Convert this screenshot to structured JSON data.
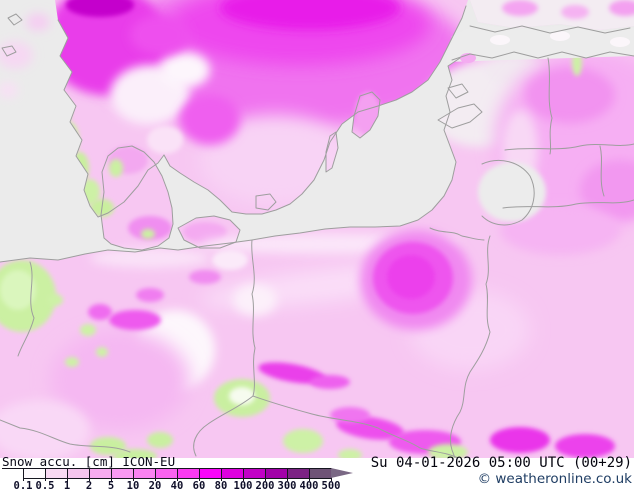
{
  "legend": {
    "title": "Snow accu. [cm] ICON-EU",
    "scale_labels": [
      "0.1",
      "0.5",
      "1",
      "2",
      "5",
      "10",
      "20",
      "40",
      "60",
      "80",
      "100",
      "200",
      "300",
      "400",
      "500"
    ],
    "scale_colors": [
      "#fdfafd",
      "#f8d9f3",
      "#f5c5ee",
      "#f7abf0",
      "#f999f2",
      "#fa82f1",
      "#fa63f0",
      "#fb3af2",
      "#fa04fa",
      "#de00df",
      "#c201c6",
      "#a201a9",
      "#7c2384",
      "#6f5377"
    ],
    "arrow_color": "#7a6884"
  },
  "footer": {
    "datetime": "Su 04-01-2026 05:00 UTC (00+29)",
    "copyright": "© weatheronline.co.uk"
  },
  "map": {
    "sea_color": "#ebebeb",
    "land_low_color": "#f7c7f2",
    "land_high_color": "#ec3fec",
    "no_snow_color": "#cdf1a6",
    "coastline_color": "#9e9e9e"
  }
}
